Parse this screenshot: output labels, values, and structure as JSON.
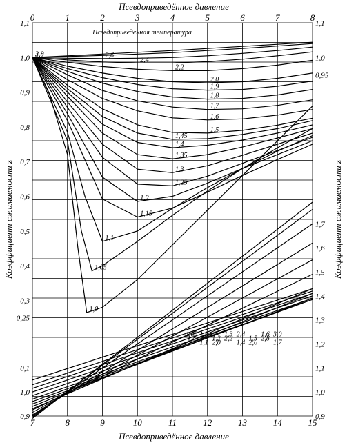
{
  "chart_data": {
    "type": "line",
    "title": "",
    "top_axis": {
      "label": "Псевдоприведённое давление",
      "range": [
        0,
        8
      ],
      "ticks": [
        "0",
        "1",
        "2",
        "3",
        "4",
        "5",
        "6",
        "7",
        "8"
      ]
    },
    "bottom_axis": {
      "label": "Псевдоприведённое давление",
      "range": [
        7,
        15
      ],
      "ticks": [
        "7",
        "8",
        "9",
        "10",
        "11",
        "12",
        "13",
        "14",
        "15"
      ]
    },
    "left_axis": {
      "label": "Коэффициент сжимаемости z",
      "upper_ticks": [
        "1,1",
        "1,0",
        "0,9",
        "0,8",
        "0,7",
        "0,6",
        "0,5",
        "0,4",
        "0,3",
        "0,25"
      ],
      "lower_ticks": [
        "0,1",
        "1,0",
        "0,9"
      ]
    },
    "right_axis": {
      "label": "Коэффициент сжимаемости z",
      "upper_ticks": [
        "1,1",
        "1,0",
        "0,95"
      ],
      "lower_ticks": [
        "1,7",
        "1,6",
        "1,5",
        "1,4",
        "1,3",
        "1,2",
        "1,1",
        "1,0",
        "0,9"
      ]
    },
    "legend_title": "Псевдоприведённая температура",
    "upper_curves": [
      {
        "name": "3,0",
        "x": [
          0,
          1,
          2,
          3,
          4,
          5,
          6,
          7,
          8
        ],
        "y": [
          1.0,
          1.005,
          1.01,
          1.015,
          1.02,
          1.026,
          1.032,
          1.038,
          1.044
        ]
      },
      {
        "name": "2,8",
        "x": [
          0,
          1,
          2,
          3,
          4,
          5,
          6,
          7,
          8
        ],
        "y": [
          1.0,
          1.003,
          1.006,
          1.01,
          1.014,
          1.02,
          1.026,
          1.033,
          1.04
        ]
      },
      {
        "name": "2,6",
        "x": [
          0,
          1,
          2,
          3,
          4,
          5,
          6,
          7,
          8
        ],
        "y": [
          1.0,
          0.998,
          0.997,
          0.998,
          1.0,
          1.005,
          1.012,
          1.02,
          1.03
        ]
      },
      {
        "name": "2,4",
        "x": [
          0,
          1,
          2,
          3,
          4,
          5,
          6,
          7,
          8
        ],
        "y": [
          1.0,
          0.993,
          0.987,
          0.984,
          0.984,
          0.988,
          0.995,
          1.005,
          1.016
        ]
      },
      {
        "name": "2,2",
        "x": [
          0,
          1,
          2,
          3,
          4,
          5,
          6,
          7,
          8
        ],
        "y": [
          1.0,
          0.986,
          0.974,
          0.966,
          0.962,
          0.962,
          0.968,
          0.978,
          0.992
        ]
      },
      {
        "name": "2,0",
        "x": [
          0,
          1,
          2,
          3,
          4,
          5,
          6,
          7,
          8
        ],
        "y": [
          1.0,
          0.975,
          0.955,
          0.94,
          0.93,
          0.927,
          0.93,
          0.94,
          0.955
        ]
      },
      {
        "name": "1,9",
        "x": [
          0,
          1,
          2,
          3,
          4,
          5,
          6,
          7,
          8
        ],
        "y": [
          1.0,
          0.968,
          0.942,
          0.922,
          0.91,
          0.906,
          0.908,
          0.917,
          0.932
        ]
      },
      {
        "name": "1,8",
        "x": [
          0,
          1,
          2,
          3,
          4,
          5,
          6,
          7,
          8
        ],
        "y": [
          1.0,
          0.96,
          0.926,
          0.902,
          0.886,
          0.88,
          0.882,
          0.892,
          0.908
        ]
      },
      {
        "name": "1,7",
        "x": [
          0,
          1,
          2,
          3,
          4,
          5,
          6,
          7,
          8
        ],
        "y": [
          1.0,
          0.95,
          0.905,
          0.875,
          0.857,
          0.85,
          0.852,
          0.862,
          0.878
        ]
      },
      {
        "name": "1,6",
        "x": [
          0,
          1,
          2,
          3,
          4,
          5,
          6,
          7,
          8
        ],
        "y": [
          1.0,
          0.936,
          0.882,
          0.846,
          0.826,
          0.82,
          0.823,
          0.834,
          0.85
        ]
      },
      {
        "name": "1,5",
        "x": [
          0,
          1,
          2,
          3,
          4,
          5,
          6,
          7,
          8
        ],
        "y": [
          1.0,
          0.92,
          0.852,
          0.806,
          0.784,
          0.782,
          0.79,
          0.805,
          0.825
        ]
      },
      {
        "name": "1,45",
        "x": [
          0,
          1,
          2,
          3,
          4,
          5,
          6,
          7,
          8
        ],
        "y": [
          1.0,
          0.91,
          0.83,
          0.782,
          0.764,
          0.766,
          0.778,
          0.795,
          0.818
        ]
      },
      {
        "name": "1,4",
        "x": [
          0,
          1,
          2,
          3,
          4,
          5,
          6,
          7,
          8
        ],
        "y": [
          1.0,
          0.9,
          0.808,
          0.755,
          0.74,
          0.747,
          0.762,
          0.782,
          0.806
        ]
      },
      {
        "name": "1,35",
        "x": [
          0,
          1,
          2,
          3,
          4,
          5,
          6,
          7,
          8
        ],
        "y": [
          1.0,
          0.888,
          0.782,
          0.72,
          0.708,
          0.72,
          0.742,
          0.768,
          0.795
        ]
      },
      {
        "name": "1,3",
        "x": [
          0,
          1,
          2,
          3,
          4,
          5,
          6,
          7,
          8
        ],
        "y": [
          1.0,
          0.872,
          0.75,
          0.678,
          0.668,
          0.688,
          0.718,
          0.75,
          0.782
        ]
      },
      {
        "name": "1,25",
        "x": [
          0,
          1,
          2,
          3,
          4,
          5,
          6,
          7,
          8
        ],
        "y": [
          1.0,
          0.856,
          0.712,
          0.635,
          0.63,
          0.658,
          0.695,
          0.732,
          0.77
        ]
      },
      {
        "name": "1,2",
        "x": [
          0,
          1,
          2,
          3,
          4,
          5,
          6,
          7,
          8
        ],
        "y": [
          1.0,
          0.838,
          0.655,
          0.585,
          0.6,
          0.638,
          0.68,
          0.72,
          0.76
        ]
      },
      {
        "name": "1,15",
        "x": [
          0,
          1,
          2,
          3,
          4,
          5,
          6,
          7,
          8
        ],
        "y": [
          1.0,
          0.818,
          0.592,
          0.54,
          0.566,
          0.612,
          0.66,
          0.706,
          0.75
        ]
      },
      {
        "name": "1,1",
        "x": [
          0,
          1,
          1.5,
          2,
          3,
          4,
          5,
          6,
          7,
          8
        ],
        "y": [
          1.0,
          0.785,
          0.6,
          0.47,
          0.5,
          0.565,
          0.625,
          0.68,
          0.73,
          0.775
        ]
      },
      {
        "name": "1,05",
        "x": [
          0,
          1,
          1.4,
          1.7,
          2,
          3,
          4,
          5,
          6,
          7,
          8
        ],
        "y": [
          1.0,
          0.76,
          0.5,
          0.385,
          0.4,
          0.47,
          0.545,
          0.615,
          0.68,
          0.74,
          0.795
        ]
      },
      {
        "name": "1,0",
        "x": [
          0,
          0.5,
          1,
          1.3,
          1.55,
          2,
          3,
          4,
          5,
          6,
          7,
          8
        ],
        "y": [
          1.0,
          0.89,
          0.72,
          0.45,
          0.265,
          0.28,
          0.36,
          0.46,
          0.56,
          0.66,
          0.76,
          0.86
        ]
      }
    ],
    "lower_curves": [
      {
        "name": "3,0",
        "x": [
          7,
          15
        ],
        "y": [
          1.05,
          1.43
        ]
      },
      {
        "name": "2,8",
        "x": [
          7,
          15
        ],
        "y": [
          1.03,
          1.42
        ]
      },
      {
        "name": "2,6",
        "x": [
          7,
          15
        ],
        "y": [
          1.015,
          1.41
        ]
      },
      {
        "name": "2,4",
        "x": [
          7,
          15
        ],
        "y": [
          1.0,
          1.4
        ]
      },
      {
        "name": "2,2",
        "x": [
          7,
          15
        ],
        "y": [
          0.985,
          1.39
        ]
      },
      {
        "name": "2,0",
        "x": [
          7,
          15
        ],
        "y": [
          0.97,
          1.385
        ]
      },
      {
        "name": "1,9",
        "x": [
          7,
          15
        ],
        "y": [
          0.96,
          1.385
        ]
      },
      {
        "name": "1,8",
        "x": [
          7,
          15
        ],
        "y": [
          0.95,
          1.39
        ]
      },
      {
        "name": "1,7",
        "x": [
          7,
          15
        ],
        "y": [
          0.94,
          1.41
        ]
      },
      {
        "name": "1,6",
        "x": [
          7,
          15
        ],
        "y": [
          0.93,
          1.43
        ]
      },
      {
        "name": "1,5",
        "x": [
          7,
          15
        ],
        "y": [
          0.925,
          1.49
        ]
      },
      {
        "name": "1,4",
        "x": [
          7,
          15
        ],
        "y": [
          0.915,
          1.55
        ]
      },
      {
        "name": "1,3",
        "x": [
          7,
          15
        ],
        "y": [
          0.905,
          1.62
        ]
      },
      {
        "name": "1,2",
        "x": [
          7,
          15
        ],
        "y": [
          0.9,
          1.7
        ]
      },
      {
        "name": "1,1",
        "x": [
          7,
          15
        ],
        "y": [
          0.895,
          1.76
        ]
      },
      {
        "name": "1,05",
        "x": [
          7,
          15
        ],
        "y": [
          0.89,
          1.79
        ]
      }
    ],
    "grid": true
  }
}
